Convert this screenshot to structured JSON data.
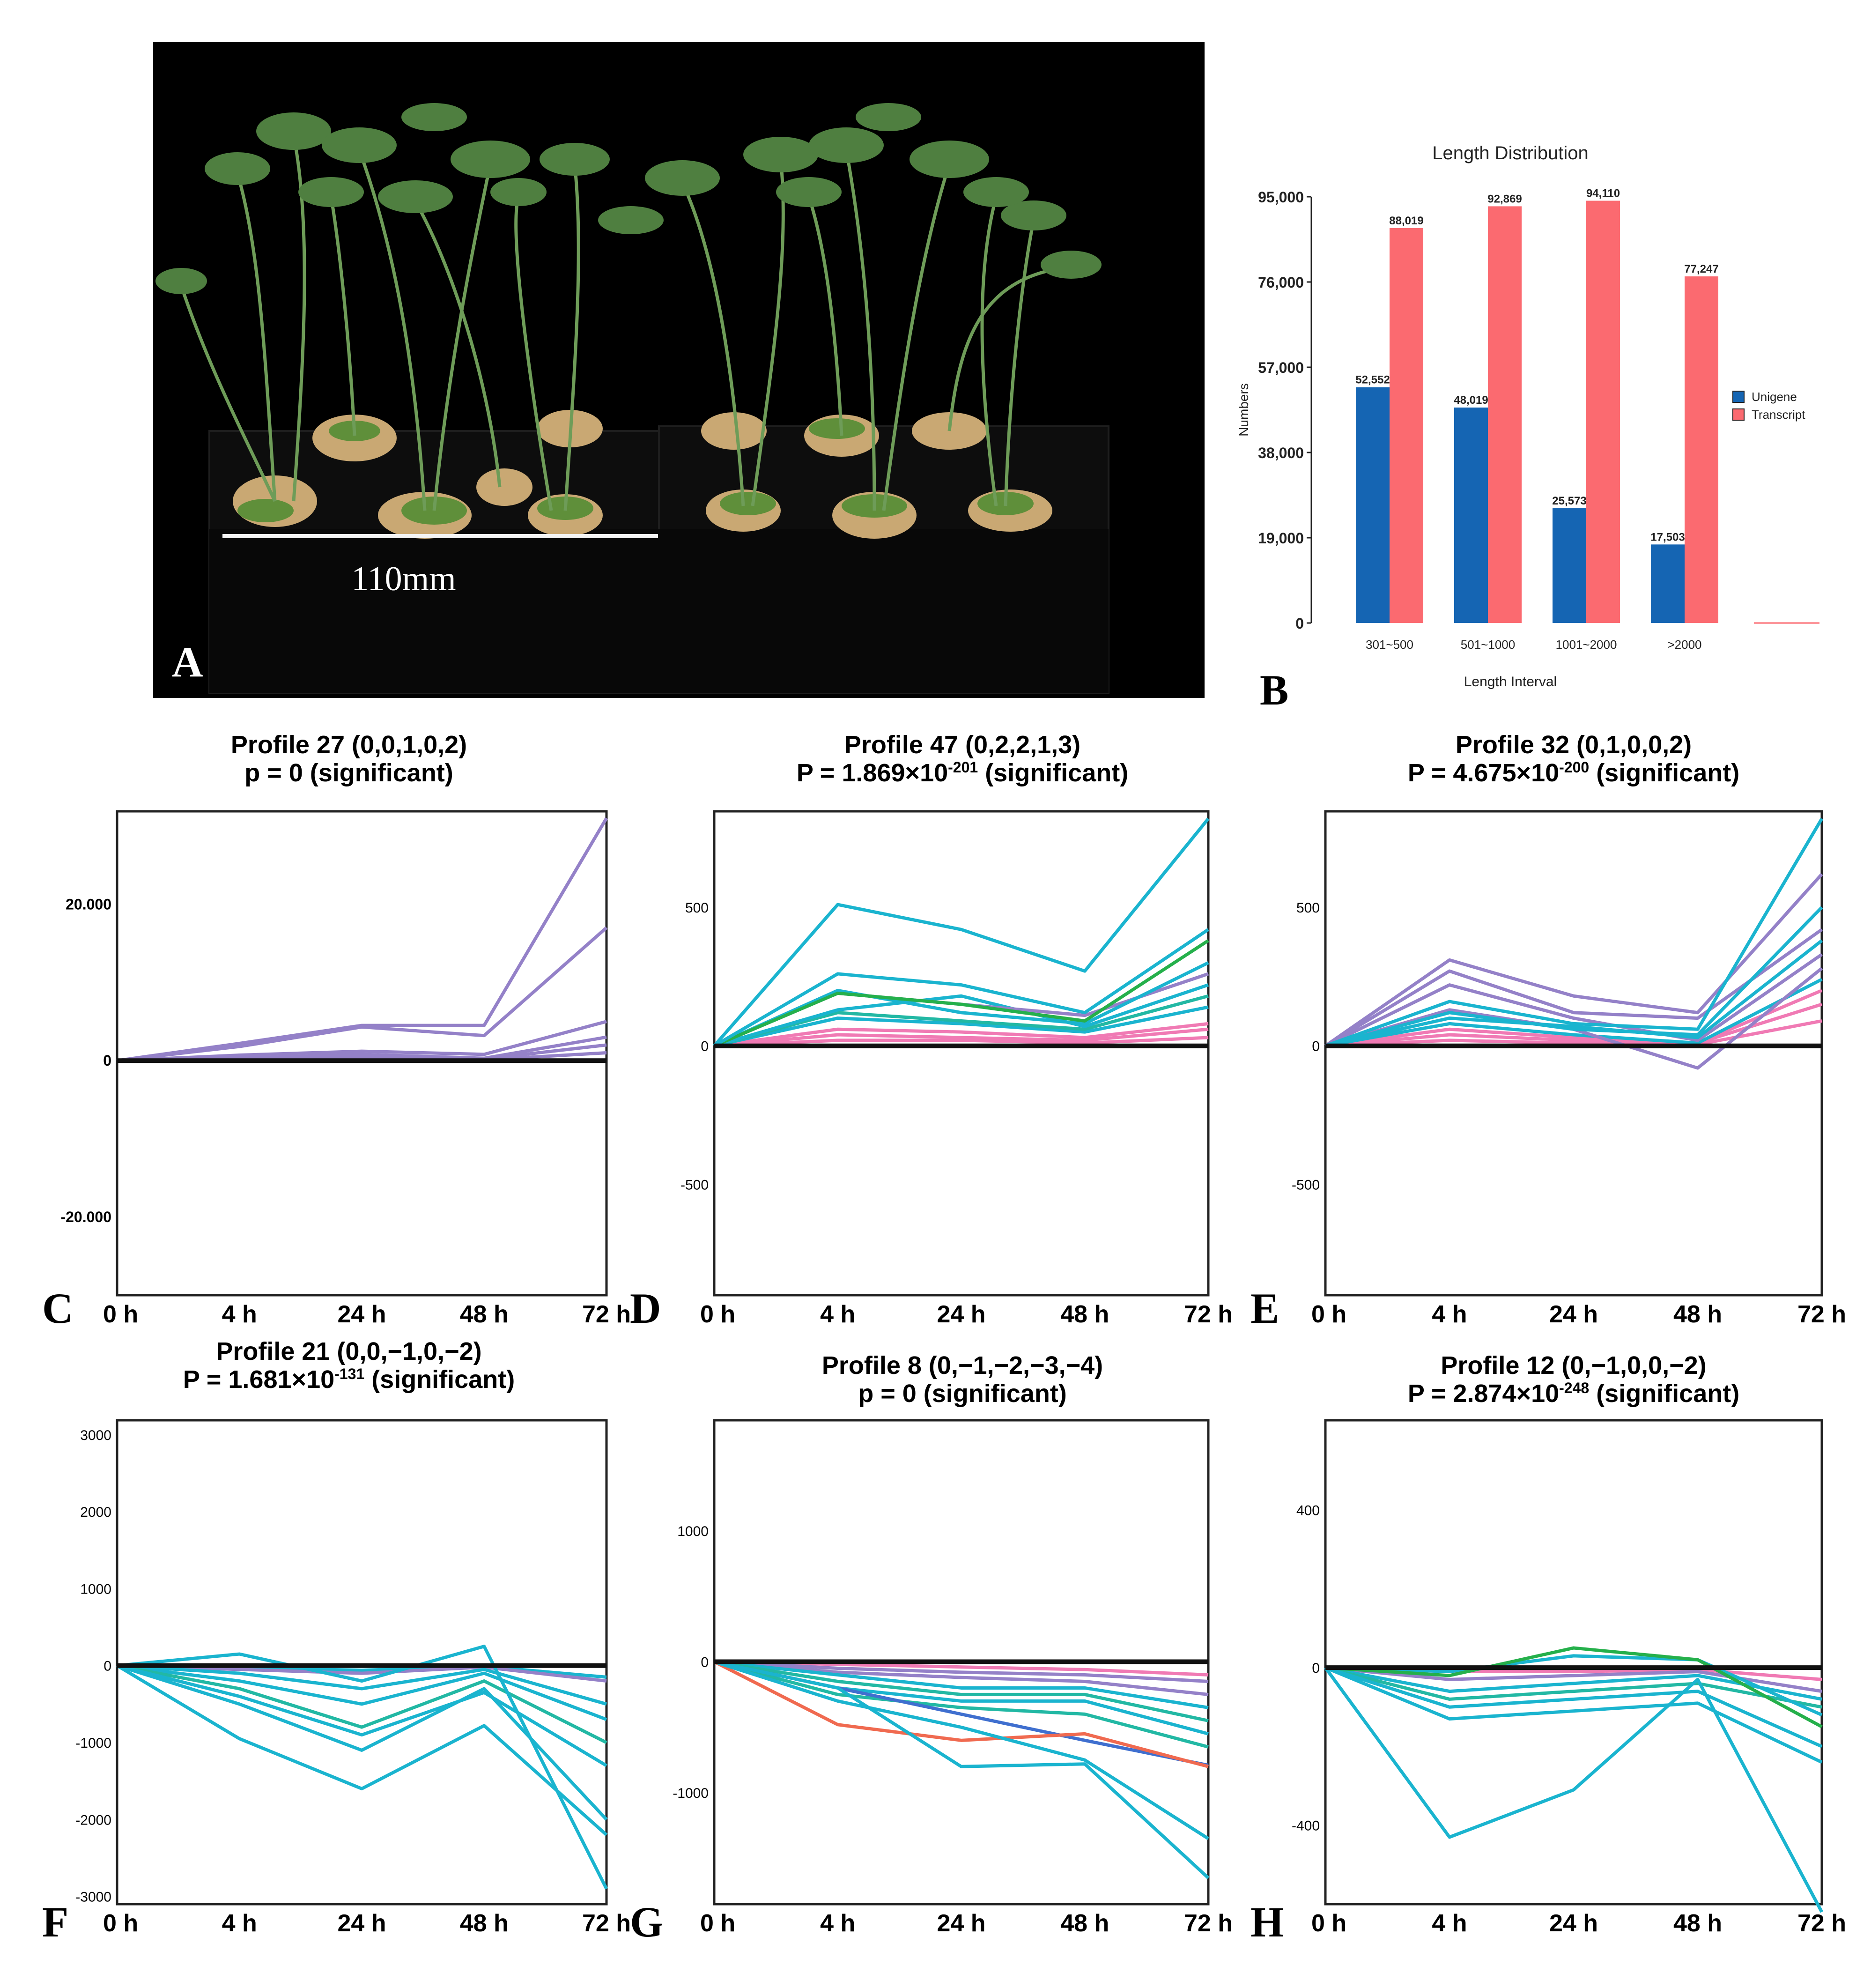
{
  "panel_letters": {
    "A": "A",
    "B": "B",
    "C": "C",
    "D": "D",
    "E": "E",
    "F": "F",
    "G": "G",
    "H": "H"
  },
  "photo": {
    "scale_label": "110mm"
  },
  "colors": {
    "unigene": "#1565b3",
    "transcript": "#fb6a70",
    "purple": "#9481c8",
    "cyan": "#1ab4cf",
    "green": "#25b04b",
    "teal": "#22b8a4",
    "pink": "#f07ab4",
    "orange": "#f06a50",
    "blue": "#3f6fcf",
    "axis": "#222222"
  },
  "chart_data": [
    {
      "id": "B",
      "type": "bar",
      "title": "Length Distribution",
      "xlabel": "Length Interval",
      "ylabel": "Numbers",
      "categories": [
        "301~500",
        "501~1000",
        "1001~2000",
        ">2000"
      ],
      "ylim": [
        0,
        95000
      ],
      "yticks": [
        "0",
        "19,000",
        "38,000",
        "57,000",
        "76,000",
        "95,000"
      ],
      "legend_position": "right",
      "series": [
        {
          "name": "Unigene",
          "values": [
            52552,
            48019,
            25573,
            17503
          ],
          "labels": [
            "52,552",
            "48,019",
            "25,573",
            "17,503"
          ]
        },
        {
          "name": "Transcript",
          "values": [
            88019,
            92869,
            94110,
            77247
          ],
          "labels": [
            "88,019",
            "92,869",
            "94,110",
            "77,247"
          ]
        }
      ]
    },
    {
      "id": "C",
      "type": "line",
      "title": "Profile 27 (0,0,1,0,2)",
      "subtitle_pre": "p = 0 (significant)",
      "subtitle_exp": "",
      "subtitle_post": "",
      "x": [
        "0 h",
        "4 h",
        "24 h",
        "48 h",
        "72 h"
      ],
      "ylim": [
        -30000,
        32000
      ],
      "yticks": [
        {
          "v": 20000,
          "t": "20.000"
        },
        {
          "v": 0,
          "t": "0"
        },
        {
          "v": -20000,
          "t": "-20.000"
        }
      ],
      "series": [
        {
          "color": "purple",
          "values": [
            0,
            2200,
            4500,
            4500,
            31000
          ]
        },
        {
          "color": "purple",
          "values": [
            0,
            1800,
            4300,
            3200,
            17000
          ]
        },
        {
          "color": "purple",
          "values": [
            0,
            700,
            1200,
            800,
            5000
          ]
        },
        {
          "color": "purple",
          "values": [
            0,
            300,
            800,
            300,
            3000
          ]
        },
        {
          "color": "purple",
          "values": [
            0,
            200,
            500,
            200,
            2000
          ]
        },
        {
          "color": "purple",
          "values": [
            0,
            100,
            200,
            100,
            1000
          ]
        }
      ]
    },
    {
      "id": "D",
      "type": "line",
      "title": "Profile 47 (0,2,2,1,3)",
      "subtitle_pre": "P = 1.869×10",
      "subtitle_exp": "-201",
      "subtitle_post": " (significant)",
      "x": [
        "0 h",
        "4 h",
        "24 h",
        "48 h",
        "72 h"
      ],
      "ylim": [
        -900,
        850
      ],
      "yticks": [
        {
          "v": 500,
          "t": "500"
        },
        {
          "v": 0,
          "t": "0"
        },
        {
          "v": -500,
          "t": "-500"
        }
      ],
      "series": [
        {
          "color": "cyan",
          "values": [
            0,
            510,
            420,
            270,
            820
          ]
        },
        {
          "color": "cyan",
          "values": [
            0,
            260,
            220,
            120,
            420
          ]
        },
        {
          "color": "green",
          "values": [
            0,
            190,
            150,
            90,
            380
          ]
        },
        {
          "color": "cyan",
          "values": [
            0,
            200,
            120,
            80,
            300
          ]
        },
        {
          "color": "purple",
          "values": [
            0,
            190,
            150,
            110,
            260
          ]
        },
        {
          "color": "cyan",
          "values": [
            0,
            130,
            180,
            70,
            220
          ]
        },
        {
          "color": "teal",
          "values": [
            0,
            120,
            90,
            60,
            180
          ]
        },
        {
          "color": "cyan",
          "values": [
            0,
            100,
            80,
            50,
            140
          ]
        },
        {
          "color": "pink",
          "values": [
            0,
            60,
            50,
            30,
            80
          ]
        },
        {
          "color": "pink",
          "values": [
            0,
            40,
            30,
            20,
            60
          ]
        },
        {
          "color": "pink",
          "values": [
            0,
            20,
            20,
            10,
            30
          ]
        }
      ]
    },
    {
      "id": "E",
      "type": "line",
      "title": "Profile 32 (0,1,0,0,2)",
      "subtitle_pre": "P = 4.675×10",
      "subtitle_exp": "-200",
      "subtitle_post": " (significant)",
      "x": [
        "0 h",
        "4 h",
        "24 h",
        "48 h",
        "72 h"
      ],
      "ylim": [
        -900,
        850
      ],
      "yticks": [
        {
          "v": 500,
          "t": "500"
        },
        {
          "v": 0,
          "t": "0"
        },
        {
          "v": -500,
          "t": "-500"
        }
      ],
      "series": [
        {
          "color": "cyan",
          "values": [
            0,
            160,
            80,
            60,
            820
          ]
        },
        {
          "color": "purple",
          "values": [
            0,
            310,
            180,
            120,
            620
          ]
        },
        {
          "color": "cyan",
          "values": [
            0,
            120,
            60,
            40,
            500
          ]
        },
        {
          "color": "purple",
          "values": [
            0,
            270,
            120,
            100,
            420
          ]
        },
        {
          "color": "cyan",
          "values": [
            0,
            100,
            70,
            30,
            380
          ]
        },
        {
          "color": "purple",
          "values": [
            0,
            220,
            100,
            20,
            330
          ]
        },
        {
          "color": "purple",
          "values": [
            0,
            130,
            60,
            -80,
            280
          ]
        },
        {
          "color": "cyan",
          "values": [
            0,
            80,
            40,
            10,
            240
          ]
        },
        {
          "color": "pink",
          "values": [
            0,
            60,
            30,
            10,
            200
          ]
        },
        {
          "color": "pink",
          "values": [
            0,
            40,
            20,
            10,
            150
          ]
        },
        {
          "color": "pink",
          "values": [
            0,
            20,
            10,
            5,
            90
          ]
        }
      ]
    },
    {
      "id": "F",
      "type": "line",
      "title": "Profile 21 (0,0,−1,0,−2)",
      "subtitle_pre": "P = 1.681×10",
      "subtitle_exp": "-131",
      "subtitle_post": " (significant)",
      "x": [
        "0 h",
        "4 h",
        "24 h",
        "48 h",
        "72 h"
      ],
      "ylim": [
        -3100,
        3200
      ],
      "yticks": [
        {
          "v": 3000,
          "t": "3000"
        },
        {
          "v": 2000,
          "t": "2000"
        },
        {
          "v": 1000,
          "t": "1000"
        },
        {
          "v": 0,
          "t": "0"
        },
        {
          "v": -1000,
          "t": "-1000"
        },
        {
          "v": -2000,
          "t": "-2000"
        },
        {
          "v": -3000,
          "t": "-3000"
        }
      ],
      "series": [
        {
          "color": "cyan",
          "values": [
            0,
            150,
            -200,
            250,
            -2900
          ]
        },
        {
          "color": "cyan",
          "values": [
            0,
            -950,
            -1600,
            -780,
            -2200
          ]
        },
        {
          "color": "cyan",
          "values": [
            0,
            -500,
            -1100,
            -300,
            -2000
          ]
        },
        {
          "color": "cyan",
          "values": [
            0,
            -400,
            -900,
            -350,
            -1300
          ]
        },
        {
          "color": "teal",
          "values": [
            0,
            -300,
            -800,
            -200,
            -1000
          ]
        },
        {
          "color": "cyan",
          "values": [
            0,
            -200,
            -500,
            -100,
            -700
          ]
        },
        {
          "color": "cyan",
          "values": [
            0,
            -100,
            -300,
            -50,
            -500
          ]
        },
        {
          "color": "purple",
          "values": [
            0,
            -50,
            -100,
            -20,
            -200
          ]
        },
        {
          "color": "cyan",
          "values": [
            0,
            -30,
            -60,
            -10,
            -150
          ]
        }
      ]
    },
    {
      "id": "G",
      "type": "line",
      "title": "Profile 8 (0,−1,−2,−3,−4)",
      "subtitle_pre": "p = 0 (significant)",
      "subtitle_exp": "",
      "subtitle_post": "",
      "x": [
        "0 h",
        "4 h",
        "24 h",
        "48 h",
        "72 h"
      ],
      "ylim": [
        -1850,
        1850
      ],
      "yticks": [
        {
          "v": 1000,
          "t": "1000"
        },
        {
          "v": 0,
          "t": "0"
        },
        {
          "v": -1000,
          "t": "-1000"
        }
      ],
      "series": [
        {
          "color": "cyan",
          "values": [
            0,
            -200,
            -800,
            -780,
            -1650
          ]
        },
        {
          "color": "cyan",
          "values": [
            0,
            -300,
            -500,
            -750,
            -1350
          ]
        },
        {
          "color": "orange",
          "values": [
            0,
            -480,
            -600,
            -550,
            -800
          ]
        },
        {
          "color": "blue",
          "values": [
            0,
            -200,
            -400,
            -600,
            -790
          ]
        },
        {
          "color": "teal",
          "values": [
            0,
            -250,
            -350,
            -400,
            -650
          ]
        },
        {
          "color": "cyan",
          "values": [
            0,
            -200,
            -300,
            -300,
            -550
          ]
        },
        {
          "color": "teal",
          "values": [
            0,
            -150,
            -250,
            -250,
            -450
          ]
        },
        {
          "color": "cyan",
          "values": [
            0,
            -100,
            -200,
            -200,
            -350
          ]
        },
        {
          "color": "purple",
          "values": [
            0,
            -80,
            -120,
            -150,
            -250
          ]
        },
        {
          "color": "purple",
          "values": [
            0,
            -50,
            -80,
            -100,
            -150
          ]
        },
        {
          "color": "pink",
          "values": [
            0,
            -20,
            -40,
            -60,
            -100
          ]
        }
      ]
    },
    {
      "id": "H",
      "type": "line",
      "title": "Profile 12 (0,−1,0,0,−2)",
      "subtitle_pre": "P = 2.874×10",
      "subtitle_exp": "-248",
      "subtitle_post": " (significant)",
      "x": [
        "0 h",
        "4 h",
        "24 h",
        "48 h",
        "72 h"
      ],
      "ylim": [
        -600,
        630
      ],
      "yticks": [
        {
          "v": 400,
          "t": "400"
        },
        {
          "v": 0,
          "t": "0"
        },
        {
          "v": -400,
          "t": "-400"
        }
      ],
      "series": [
        {
          "color": "cyan",
          "values": [
            0,
            -430,
            -310,
            -30,
            -620
          ]
        },
        {
          "color": "cyan",
          "values": [
            0,
            -130,
            -110,
            -90,
            -240
          ]
        },
        {
          "color": "cyan",
          "values": [
            0,
            -100,
            -80,
            -60,
            -200
          ]
        },
        {
          "color": "green",
          "values": [
            0,
            -20,
            50,
            20,
            -150
          ]
        },
        {
          "color": "cyan",
          "values": [
            0,
            -10,
            30,
            20,
            -120
          ]
        },
        {
          "color": "teal",
          "values": [
            0,
            -80,
            -60,
            -40,
            -100
          ]
        },
        {
          "color": "cyan",
          "values": [
            0,
            -60,
            -40,
            -20,
            -80
          ]
        },
        {
          "color": "purple",
          "values": [
            0,
            -30,
            -20,
            -10,
            -60
          ]
        },
        {
          "color": "pink",
          "values": [
            0,
            -10,
            -10,
            -5,
            -30
          ]
        }
      ]
    }
  ]
}
